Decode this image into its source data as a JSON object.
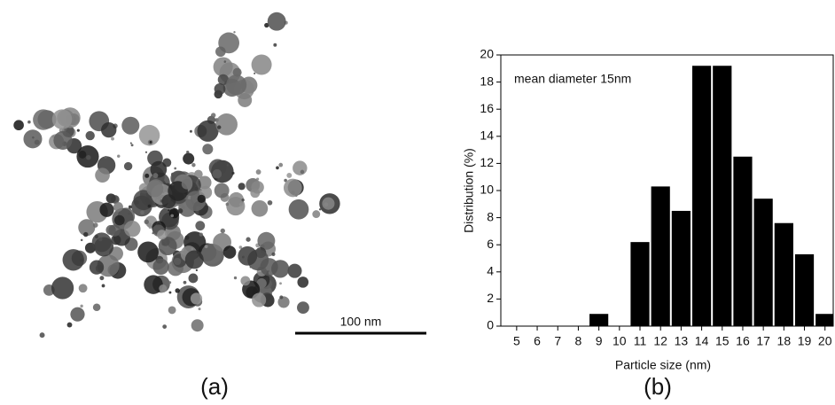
{
  "image": {
    "scale_bar": "100 nm",
    "label": "(a)"
  },
  "chart_data": {
    "type": "bar",
    "label": "(b)",
    "annotation": "mean diameter 15nm",
    "x_label": "Particle size (nm)",
    "y_label": "Distribution (%)",
    "x": [
      5,
      6,
      7,
      8,
      9,
      10,
      11,
      12,
      13,
      14,
      15,
      16,
      17,
      18,
      19,
      20
    ],
    "values": [
      0,
      0,
      0,
      0,
      0.9,
      0,
      6.2,
      10.3,
      8.5,
      19.2,
      19.2,
      12.5,
      9.4,
      7.6,
      5.3,
      0.9
    ],
    "color": "#000000",
    "xlim": [
      4.23,
      20.4
    ],
    "xticks": [
      5,
      6,
      7,
      8,
      9,
      10,
      11,
      12,
      13,
      14,
      15,
      16,
      17,
      18,
      19,
      20
    ],
    "ylim": [
      0,
      20
    ],
    "yticks": [
      0,
      2,
      4,
      6,
      8,
      10,
      12,
      14,
      16,
      18,
      20
    ]
  }
}
